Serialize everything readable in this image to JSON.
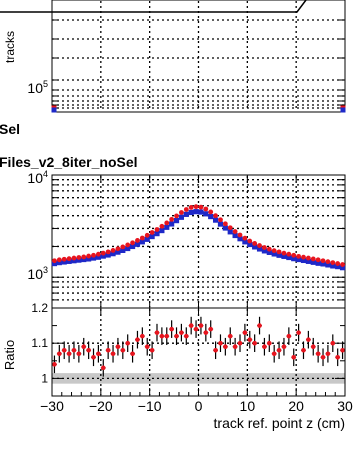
{
  "legend": {
    "line1": "Sel",
    "line2": "Files_v2_8iter_noSel"
  },
  "chart_data": [
    {
      "type": "scatter",
      "panel": "top",
      "ylabel": "tracks",
      "yscale": "log",
      "ytick_labels": [
        {
          "base": "10",
          "exp": "5"
        }
      ],
      "grid": true,
      "series": [
        {
          "name": "",
          "color": "#e8141e",
          "x": [
            -30,
            30
          ],
          "y": [
            95000,
            95000
          ]
        },
        {
          "name": "",
          "color": "#1e28c8",
          "x": [
            -30,
            30
          ],
          "y": [
            90000,
            90000
          ]
        }
      ]
    },
    {
      "type": "scatter",
      "panel": "middle",
      "yscale": "log",
      "ylim": [
        500,
        10000
      ],
      "ytick_labels": [
        {
          "base": "10",
          "exp": "3"
        },
        {
          "base": "10",
          "exp": "4"
        }
      ],
      "grid": true,
      "series": [
        {
          "name": "",
          "color": "#e8141e",
          "x": [
            -29.5,
            -28.5,
            -27.5,
            -26.5,
            -25.5,
            -24.5,
            -23.5,
            -22.5,
            -21.5,
            -20.5,
            -19.5,
            -18.5,
            -17.5,
            -16.5,
            -15.5,
            -14.5,
            -13.5,
            -12.5,
            -11.5,
            -10.5,
            -9.5,
            -8.5,
            -7.5,
            -6.5,
            -5.5,
            -4.5,
            -3.5,
            -2.5,
            -1.5,
            -0.5,
            0.5,
            1.5,
            2.5,
            3.5,
            4.5,
            5.5,
            6.5,
            7.5,
            8.5,
            9.5,
            10.5,
            11.5,
            12.5,
            13.5,
            14.5,
            15.5,
            16.5,
            17.5,
            18.5,
            19.5,
            20.5,
            21.5,
            22.5,
            23.5,
            24.5,
            25.5,
            26.5,
            27.5,
            28.5,
            29.5
          ],
          "y": [
            1450,
            1480,
            1500,
            1520,
            1540,
            1560,
            1580,
            1610,
            1640,
            1680,
            1720,
            1770,
            1830,
            1900,
            1980,
            2070,
            2170,
            2290,
            2420,
            2570,
            2740,
            2930,
            3150,
            3400,
            3680,
            3980,
            4300,
            4600,
            4820,
            4900,
            4850,
            4650,
            4350,
            4000,
            3650,
            3330,
            3050,
            2800,
            2590,
            2410,
            2260,
            2140,
            2040,
            1950,
            1880,
            1820,
            1770,
            1720,
            1680,
            1640,
            1600,
            1570,
            1540,
            1510,
            1480,
            1450,
            1420,
            1390,
            1360,
            1330
          ]
        },
        {
          "name": "",
          "color": "#1e28c8",
          "x": [
            -29.5,
            -28.5,
            -27.5,
            -26.5,
            -25.5,
            -24.5,
            -23.5,
            -22.5,
            -21.5,
            -20.5,
            -19.5,
            -18.5,
            -17.5,
            -16.5,
            -15.5,
            -14.5,
            -13.5,
            -12.5,
            -11.5,
            -10.5,
            -9.5,
            -8.5,
            -7.5,
            -6.5,
            -5.5,
            -4.5,
            -3.5,
            -2.5,
            -1.5,
            -0.5,
            0.5,
            1.5,
            2.5,
            3.5,
            4.5,
            5.5,
            6.5,
            7.5,
            8.5,
            9.5,
            10.5,
            11.5,
            12.5,
            13.5,
            14.5,
            15.5,
            16.5,
            17.5,
            18.5,
            19.5,
            20.5,
            21.5,
            22.5,
            23.5,
            24.5,
            25.5,
            26.5,
            27.5,
            28.5,
            29.5
          ],
          "y": [
            1360,
            1390,
            1410,
            1430,
            1450,
            1470,
            1490,
            1510,
            1540,
            1570,
            1610,
            1650,
            1700,
            1760,
            1830,
            1910,
            2000,
            2100,
            2220,
            2350,
            2500,
            2670,
            2860,
            3080,
            3320,
            3580,
            3860,
            4120,
            4300,
            4380,
            4340,
            4170,
            3920,
            3620,
            3310,
            3030,
            2780,
            2560,
            2380,
            2220,
            2090,
            1980,
            1890,
            1810,
            1750,
            1690,
            1640,
            1600,
            1560,
            1520,
            1490,
            1460,
            1430,
            1400,
            1370,
            1350,
            1320,
            1290,
            1270,
            1240
          ]
        }
      ]
    },
    {
      "type": "scatter",
      "panel": "ratio",
      "ylabel": "Ratio",
      "xlabel": "track ref. point z (cm)",
      "xlim": [
        -30,
        30
      ],
      "ylim": [
        0.95,
        1.2
      ],
      "xticks": [
        -30,
        -20,
        -10,
        0,
        10,
        20,
        30
      ],
      "xtick_labels": [
        "−30",
        "−20",
        "−10",
        "0",
        "10",
        "20",
        "30"
      ],
      "yticks": [
        1,
        1.1,
        1.2
      ],
      "ytick_labels": [
        "1",
        "1.1",
        "1.2"
      ],
      "grid": true,
      "series": [
        {
          "name": "",
          "color": "#e8141e",
          "x": [
            -29.5,
            -28.5,
            -27.5,
            -26.5,
            -25.5,
            -24.5,
            -23.5,
            -22.5,
            -21.5,
            -20.5,
            -19.5,
            -18.5,
            -17.5,
            -16.5,
            -15.5,
            -14.5,
            -13.5,
            -12.5,
            -11.5,
            -10.5,
            -9.5,
            -8.5,
            -7.5,
            -6.5,
            -5.5,
            -4.5,
            -3.5,
            -2.5,
            -1.5,
            -0.5,
            0.5,
            1.5,
            2.5,
            3.5,
            4.5,
            5.5,
            6.5,
            7.5,
            8.5,
            9.5,
            10.5,
            11.5,
            12.5,
            13.5,
            14.5,
            15.5,
            16.5,
            17.5,
            18.5,
            19.5,
            20.5,
            21.5,
            22.5,
            23.5,
            24.5,
            25.5,
            26.5,
            27.5,
            28.5,
            29.5
          ],
          "y": [
            1.04,
            1.07,
            1.08,
            1.07,
            1.08,
            1.07,
            1.09,
            1.08,
            1.06,
            1.07,
            1.03,
            1.08,
            1.07,
            1.09,
            1.08,
            1.1,
            1.07,
            1.11,
            1.12,
            1.09,
            1.08,
            1.13,
            1.12,
            1.12,
            1.14,
            1.12,
            1.13,
            1.12,
            1.15,
            1.14,
            1.15,
            1.13,
            1.14,
            1.08,
            1.1,
            1.09,
            1.12,
            1.09,
            1.1,
            1.13,
            1.11,
            1.1,
            1.15,
            1.09,
            1.1,
            1.07,
            1.08,
            1.09,
            1.12,
            1.06,
            1.13,
            1.08,
            1.11,
            1.09,
            1.07,
            1.06,
            1.07,
            1.1,
            1.06,
            1.08
          ],
          "yerr": 0.025
        }
      ],
      "band": {
        "color": "#c8c8c8",
        "y": [
          0.985,
          1.015
        ]
      }
    }
  ]
}
